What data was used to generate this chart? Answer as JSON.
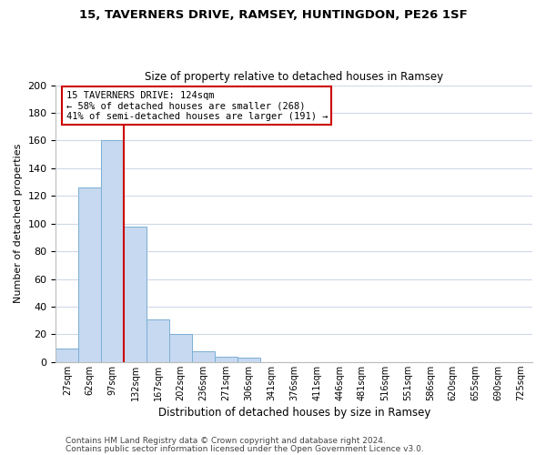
{
  "title_line1": "15, TAVERNERS DRIVE, RAMSEY, HUNTINGDON, PE26 1SF",
  "title_line2": "Size of property relative to detached houses in Ramsey",
  "xlabel": "Distribution of detached houses by size in Ramsey",
  "ylabel": "Number of detached properties",
  "bar_labels": [
    "27sqm",
    "62sqm",
    "97sqm",
    "132sqm",
    "167sqm",
    "202sqm",
    "236sqm",
    "271sqm",
    "306sqm",
    "341sqm",
    "376sqm",
    "411sqm",
    "446sqm",
    "481sqm",
    "516sqm",
    "551sqm",
    "586sqm",
    "620sqm",
    "655sqm",
    "690sqm",
    "725sqm"
  ],
  "bar_values": [
    10,
    126,
    160,
    98,
    31,
    20,
    8,
    4,
    3,
    0,
    0,
    0,
    0,
    0,
    0,
    0,
    0,
    0,
    0,
    0,
    0
  ],
  "bar_color": "#c6d9f0",
  "bar_edge_color": "#7bafd4",
  "reference_line_x": 3,
  "reference_line_color": "#cc0000",
  "ylim": [
    0,
    200
  ],
  "yticks": [
    0,
    20,
    40,
    60,
    80,
    100,
    120,
    140,
    160,
    180,
    200
  ],
  "annotation_line1": "15 TAVERNERS DRIVE: 124sqm",
  "annotation_line2": "← 58% of detached houses are smaller (268)",
  "annotation_line3": "41% of semi-detached houses are larger (191) →",
  "footer_line1": "Contains HM Land Registry data © Crown copyright and database right 2024.",
  "footer_line2": "Contains public sector information licensed under the Open Government Licence v3.0.",
  "background_color": "#ffffff",
  "grid_color": "#d0d8e8"
}
